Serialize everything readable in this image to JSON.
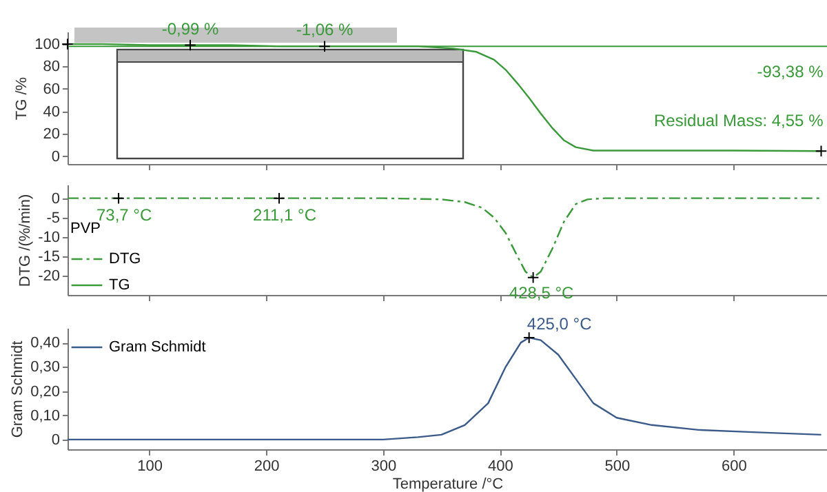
{
  "chart_data": [
    {
      "type": "line",
      "ylabel": "TG /%",
      "xlim": [
        30,
        680
      ],
      "xticks": [
        100,
        200,
        300,
        400,
        500,
        600
      ],
      "ylim": [
        -7,
        111
      ],
      "yticks": [
        0,
        20,
        40,
        60,
        80,
        100
      ],
      "tick_labels": "y",
      "series": [
        {
          "name": "TG",
          "color": "#3a9a3a",
          "x": [
            30,
            60,
            100,
            135,
            170,
            210,
            250,
            290,
            330,
            360,
            380,
            395,
            405,
            415,
            425,
            435,
            445,
            455,
            465,
            480,
            500,
            550,
            600,
            675
          ],
          "values": [
            100,
            100,
            99,
            99,
            99,
            98,
            98,
            98,
            98,
            96,
            93,
            86,
            77,
            65,
            52,
            38,
            25,
            14,
            8,
            5,
            5,
            5,
            5,
            4.55
          ]
        },
        {
          "type": "scatter",
          "marker": "cross",
          "color": "#000000",
          "x": [
            30,
            135,
            250,
            675
          ],
          "values": [
            100,
            99,
            98,
            4.55
          ]
        }
      ],
      "ref_lines": [
        {
          "axis": "y",
          "value": 98,
          "color": "#3a9a3a"
        }
      ],
      "annotations": [
        {
          "text": "-0,99 %",
          "x": 135,
          "y": 99
        },
        {
          "text": "-1,06 %",
          "x": 250,
          "y": 98
        },
        "-93,38 %",
        "Residual Mass: 4,55 %"
      ]
    },
    {
      "type": "line",
      "ylabel": "DTG /(%/min)",
      "xlim": [
        30,
        680
      ],
      "xticks": [
        100,
        200,
        300,
        400,
        500,
        600
      ],
      "ylim": [
        -25,
        3.5
      ],
      "yticks": [
        -20,
        -15,
        -10,
        -5,
        0
      ],
      "tick_labels": "y",
      "legend": "bottom left",
      "legend_title": "PVP",
      "line_style": "dashed",
      "series": [
        {
          "name": "DTG",
          "color": "#3a9a3a",
          "x": [
            30,
            100,
            200,
            300,
            350,
            370,
            385,
            395,
            405,
            415,
            422,
            428.5,
            435,
            445,
            455,
            465,
            475,
            490,
            600,
            675
          ],
          "values": [
            0,
            0,
            0,
            0,
            -0.3,
            -1,
            -2.5,
            -5,
            -9,
            -15,
            -19,
            -20.5,
            -19,
            -13,
            -6,
            -1.5,
            -0.3,
            0,
            0,
            0
          ]
        },
        {
          "type": "scatter",
          "marker": "cross",
          "color": "#000000",
          "x": [
            73.7,
            211.1,
            428.5
          ],
          "values": [
            0,
            0,
            -20.5
          ]
        }
      ],
      "annotations": [
        {
          "text": "73,7 °C",
          "x": 73.7,
          "y": 0
        },
        {
          "text": "211,1 °C",
          "x": 211.1,
          "y": 0
        },
        {
          "text": "428,5 °C",
          "x": 428.5,
          "y": -20.5
        }
      ]
    },
    {
      "type": "line",
      "xlabel": "Temperature /°C",
      "ylabel": "Gram Schmidt",
      "xlim": [
        30,
        680
      ],
      "xticks": [
        100,
        200,
        300,
        400,
        500,
        600
      ],
      "ylim": [
        -0.04,
        0.46
      ],
      "yticks": [
        0,
        {
          "value": 0.1,
          "label": "0,10"
        },
        {
          "value": 0.2,
          "label": "0,20"
        },
        {
          "value": 0.3,
          "label": "0,30"
        },
        {
          "value": 0.4,
          "label": "0,40"
        }
      ],
      "legend": "top left",
      "series": [
        {
          "name": "Gram Schmidt",
          "color": "#3a5a8a",
          "x": [
            30,
            100,
            200,
            300,
            330,
            350,
            370,
            390,
            405,
            418,
            425,
            435,
            450,
            465,
            480,
            500,
            530,
            570,
            620,
            675
          ],
          "values": [
            0,
            0,
            0,
            0,
            0.01,
            0.02,
            0.06,
            0.15,
            0.3,
            0.4,
            0.42,
            0.41,
            0.35,
            0.25,
            0.15,
            0.09,
            0.06,
            0.04,
            0.03,
            0.02
          ]
        },
        {
          "type": "scatter",
          "marker": "cross",
          "color": "#000000",
          "x": [
            425
          ],
          "values": [
            0.42
          ]
        }
      ],
      "annotations": [
        {
          "text": "425,0 °C",
          "x": 425,
          "y": 0.42
        }
      ]
    }
  ]
}
